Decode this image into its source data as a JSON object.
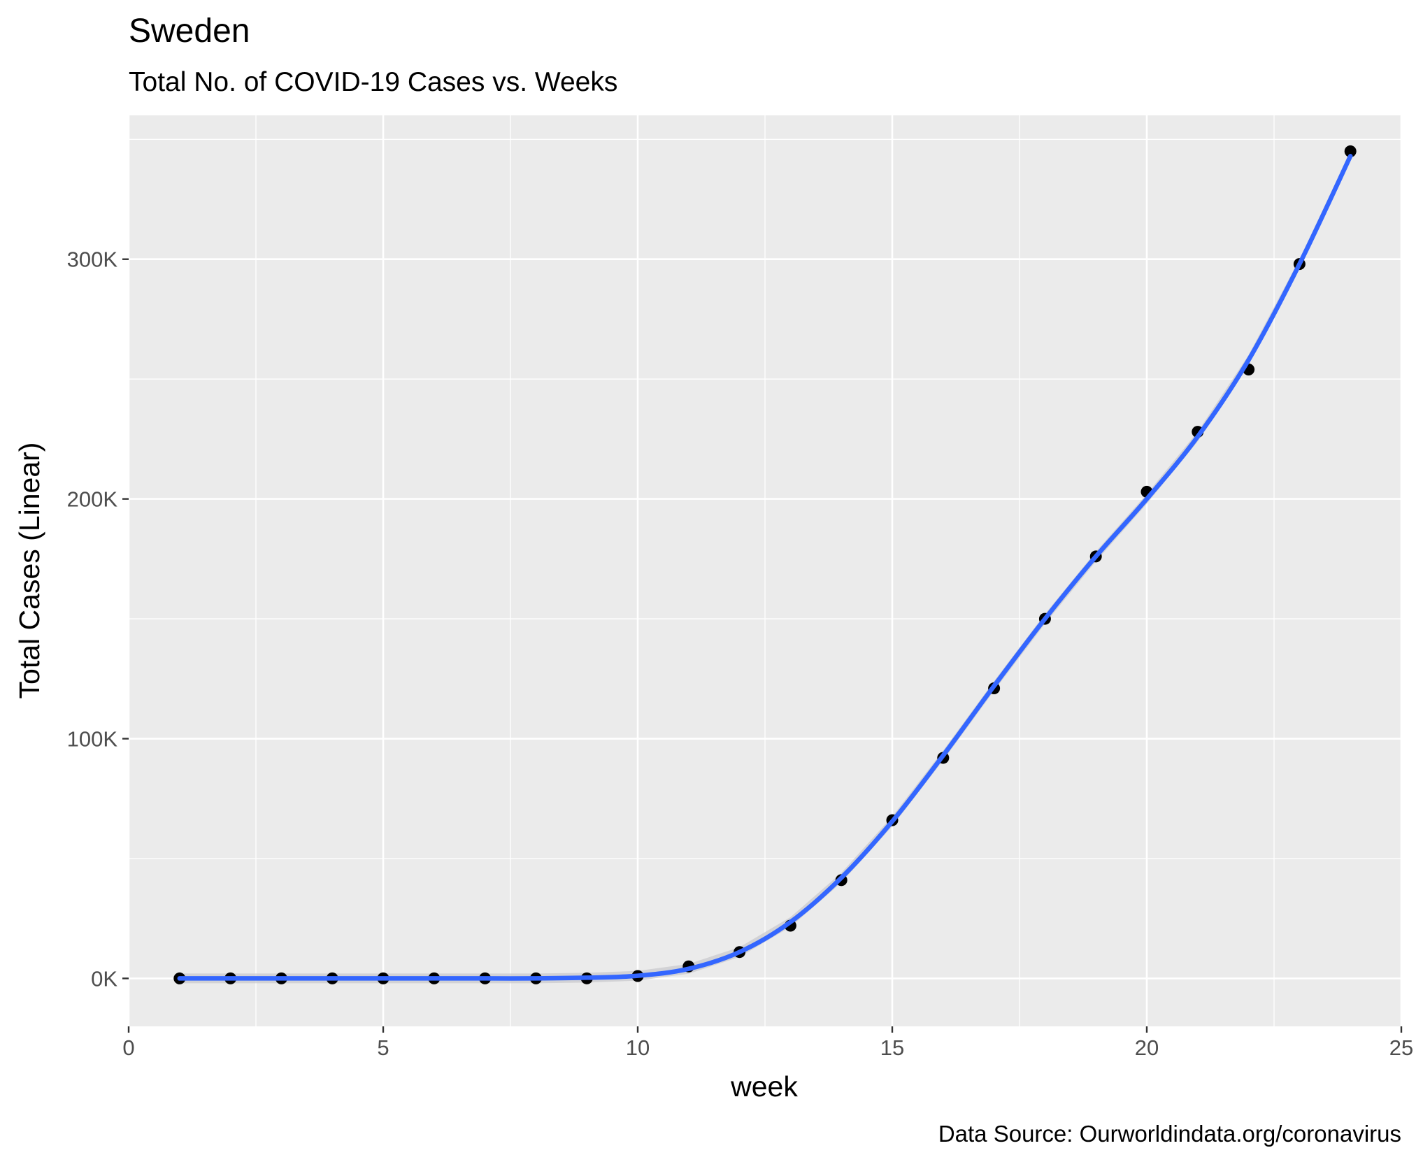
{
  "chart_data": {
    "type": "scatter",
    "title": "Sweden",
    "subtitle": "Total No. of COVID-19 Cases vs. Weeks",
    "xlabel": "week",
    "ylabel": "Total Cases (Linear)",
    "caption": "Data Source: Ourworldindata.org/coronavirus",
    "xlim": [
      0,
      25
    ],
    "ylim": [
      -20000,
      360000
    ],
    "x_ticks": [
      0,
      5,
      10,
      15,
      20,
      25
    ],
    "x_tick_labels": [
      "0",
      "5",
      "10",
      "15",
      "20",
      "25"
    ],
    "y_ticks": [
      0,
      100000,
      200000,
      300000
    ],
    "y_tick_labels": [
      "0K",
      "100K",
      "200K",
      "300K"
    ],
    "grid": true,
    "background": "#ebebeb",
    "point_color": "#000000",
    "smooth_color": "#3366ff",
    "ribbon_color": "#c8c8cc",
    "x": [
      1,
      2,
      3,
      4,
      5,
      6,
      7,
      8,
      9,
      10,
      11,
      12,
      13,
      14,
      15,
      16,
      17,
      18,
      19,
      20,
      21,
      22,
      23,
      24
    ],
    "y": [
      1,
      12,
      14,
      15,
      15,
      15,
      15,
      15,
      31,
      1000,
      5000,
      11000,
      22000,
      41000,
      66000,
      92000,
      121000,
      150000,
      176000,
      203000,
      228000,
      254000,
      298000,
      345000
    ],
    "smooth_y": [
      0,
      0,
      0,
      0,
      0,
      0,
      0,
      0,
      300,
      1100,
      4000,
      11000,
      23500,
      42000,
      65500,
      93000,
      122000,
      150000,
      176000,
      200000,
      226000,
      258000,
      298000,
      343000
    ]
  }
}
